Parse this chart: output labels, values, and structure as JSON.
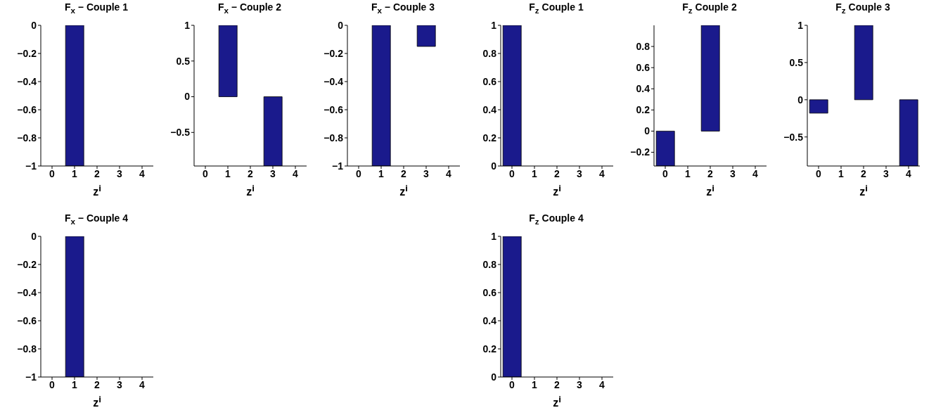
{
  "chart_data": [
    {
      "type": "bar",
      "title": "F$_{x}$ − Couple 1",
      "xlabel": "z$^{i}$",
      "categories": [
        "0",
        "1",
        "2",
        "3",
        "4"
      ],
      "values": [
        0,
        -1,
        0,
        0,
        0
      ],
      "color": "#1a1a8c",
      "ylim": [
        -1,
        0
      ],
      "yticks": [
        -1,
        -0.8,
        -0.6,
        -0.4,
        -0.2,
        0
      ],
      "grid": false
    },
    {
      "type": "bar",
      "title": "F$_{x}$ − Couple 2",
      "xlabel": "z$^{i}$",
      "categories": [
        "0",
        "1",
        "2",
        "3",
        "4"
      ],
      "values": [
        0,
        1,
        0,
        -0.97,
        0
      ],
      "color": "#1a1a8c",
      "ylim": [
        -0.97,
        1
      ],
      "yticks": [
        -0.5,
        0,
        0.5,
        1
      ],
      "grid": false
    },
    {
      "type": "bar",
      "title": "F$_{x}$ − Couple 3",
      "xlabel": "z$^{i}$",
      "categories": [
        "0",
        "1",
        "2",
        "3",
        "4"
      ],
      "values": [
        0,
        -1,
        0,
        -0.15,
        0
      ],
      "color": "#1a1a8c",
      "ylim": [
        -1,
        0
      ],
      "yticks": [
        -1,
        -0.8,
        -0.6,
        -0.4,
        -0.2,
        0
      ],
      "grid": false
    },
    {
      "type": "bar",
      "title": "F$_{z}$ Couple 1",
      "xlabel": "z$^{i}$",
      "categories": [
        "0",
        "1",
        "2",
        "3",
        "4"
      ],
      "values": [
        1,
        0,
        0,
        0,
        0
      ],
      "color": "#1a1a8c",
      "ylim": [
        0,
        1
      ],
      "yticks": [
        0,
        0.2,
        0.4,
        0.6,
        0.8,
        1
      ],
      "grid": false
    },
    {
      "type": "bar",
      "title": "F$_{z}$ Couple 2",
      "xlabel": "z$^{i}$",
      "categories": [
        "0",
        "1",
        "2",
        "3",
        "4"
      ],
      "values": [
        -0.33,
        0,
        1,
        0,
        0
      ],
      "color": "#1a1a8c",
      "ylim": [
        -0.33,
        1
      ],
      "yticks": [
        -0.2,
        0,
        0.2,
        0.4,
        0.6,
        0.8
      ],
      "grid": false
    },
    {
      "type": "bar",
      "title": "F$_{z}$ Couple 3",
      "xlabel": "z$^{i}$",
      "categories": [
        "0",
        "1",
        "2",
        "3",
        "4"
      ],
      "values": [
        -0.18,
        0,
        1,
        0,
        -0.89
      ],
      "color": "#1a1a8c",
      "ylim": [
        -0.89,
        1
      ],
      "yticks": [
        -0.5,
        0,
        0.5,
        1
      ],
      "grid": false
    },
    {
      "type": "bar",
      "title": "F$_{x}$ − Couple 4",
      "xlabel": "z$^{i}$",
      "categories": [
        "0",
        "1",
        "2",
        "3",
        "4"
      ],
      "values": [
        0,
        -1,
        0,
        0,
        0
      ],
      "color": "#1a1a8c",
      "ylim": [
        -1,
        0
      ],
      "yticks": [
        -1,
        -0.8,
        -0.6,
        -0.4,
        -0.2,
        0
      ],
      "grid": false
    },
    {
      "type": "bar",
      "title": "F$_{z}$ Couple 4",
      "xlabel": "z$^{i}$",
      "categories": [
        "0",
        "1",
        "2",
        "3",
        "4"
      ],
      "values": [
        1,
        0,
        0,
        0,
        0
      ],
      "color": "#1a1a8c",
      "ylim": [
        0,
        1
      ],
      "yticks": [
        0,
        0.2,
        0.4,
        0.6,
        0.8,
        1
      ],
      "grid": false
    }
  ]
}
